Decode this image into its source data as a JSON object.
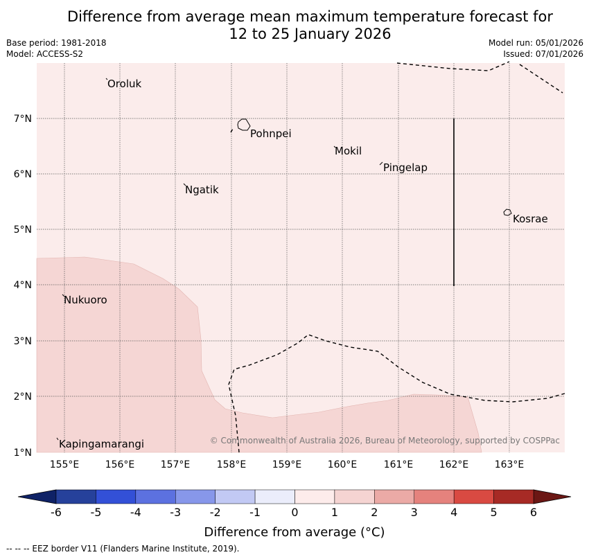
{
  "header": {
    "title_line1": "Difference from average mean maximum temperature forecast for",
    "title_line2": "12 to 25 January 2026",
    "base_period": "Base period: 1981-2018",
    "model": "Model: ACCESS-S2",
    "model_run": "Model run: 05/01/2026",
    "issued": "Issued: 07/01/2026"
  },
  "map": {
    "lon_range": [
      154.5,
      164.0
    ],
    "lat_range": [
      1.0,
      8.0
    ],
    "lon_ticks": [
      "155°E",
      "156°E",
      "157°E",
      "158°E",
      "159°E",
      "160°E",
      "161°E",
      "162°E",
      "163°E"
    ],
    "lat_ticks": [
      "7°N",
      "6°N",
      "5°N",
      "4°N",
      "3°N",
      "2°N",
      "1°N"
    ],
    "places": [
      {
        "name": "Oroluk",
        "lon": 155.75,
        "lat": 7.67
      },
      {
        "name": "Pohnpei",
        "lon": 158.33,
        "lat": 6.87
      },
      {
        "name": "Mokil",
        "lon": 159.85,
        "lat": 6.52
      },
      {
        "name": "Pingelap",
        "lon": 160.7,
        "lat": 6.2
      },
      {
        "name": "Ngatik",
        "lon": 157.15,
        "lat": 5.78
      },
      {
        "name": "Kosrae",
        "lon": 162.97,
        "lat": 5.32
      },
      {
        "name": "Nukuoro",
        "lon": 154.95,
        "lat": 3.84
      },
      {
        "name": "Kapingamarangi",
        "lon": 154.78,
        "lat": 1.07
      }
    ],
    "background_anomaly": "0 to 1",
    "region_anomaly": "1 to 2",
    "copyright": "© Commonwealth of Australia 2026, Bureau of Meteorology, supported by COSPPac"
  },
  "colorbar": {
    "ticks": [
      "-6",
      "-5",
      "-4",
      "-3",
      "-2",
      "-1",
      "0",
      "1",
      "2",
      "3",
      "4",
      "5",
      "6"
    ],
    "colors": [
      "#26419b",
      "#3350d7",
      "#5c71e0",
      "#8797ea",
      "#c2c9f4",
      "#ebedfb",
      "#fdeceb",
      "#f5d4d2",
      "#ebaaa6",
      "#e5827d",
      "#d94a42",
      "#a72a25"
    ],
    "under_color": "#0f2266",
    "over_color": "#6b1714",
    "label": "Difference from average (°C)"
  },
  "footer": {
    "eez_note": "--  --  -- EEZ border V11 (Flanders Marine Institute, 2019)."
  }
}
